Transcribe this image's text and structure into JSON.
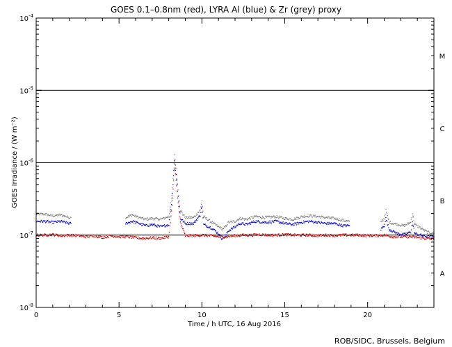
{
  "chart_data": {
    "type": "scatter",
    "title": "GOES 0.1–0.8nm (red), LYRA Al (blue) & Zr (grey) proxy",
    "xlabel": "Time / h UTC, 16 Aug 2016",
    "ylabel": "GOES Irradiance / (W m⁻²)",
    "xlim": [
      0,
      24
    ],
    "ylim": [
      1e-08,
      0.0001
    ],
    "yscale": "log",
    "x_ticks": [
      0,
      5,
      10,
      15,
      20
    ],
    "y_ticks": [
      {
        "value": 1e-08,
        "base": "10",
        "exp": "-8"
      },
      {
        "value": 1e-07,
        "base": "10",
        "exp": "-7"
      },
      {
        "value": 1e-06,
        "base": "10",
        "exp": "-6"
      },
      {
        "value": 1e-05,
        "base": "10",
        "exp": "-5"
      },
      {
        "value": 0.0001,
        "base": "10",
        "exp": "-4"
      }
    ],
    "flare_classes": [
      {
        "label": "A",
        "level": 3e-08
      },
      {
        "label": "B",
        "level": 3e-07
      },
      {
        "label": "C",
        "level": 3e-06
      },
      {
        "label": "M",
        "level": 3e-05
      }
    ],
    "threshold_lines": [
      1e-07,
      1e-06,
      1e-05
    ],
    "series": [
      {
        "color": "#808080",
        "segments": [
          [
            [
              0.0,
              1.95e-07
            ],
            [
              0.5,
              1.95e-07
            ],
            [
              1.0,
              1.85e-07
            ],
            [
              1.5,
              1.9e-07
            ],
            [
              2.0,
              1.75e-07
            ],
            [
              2.1,
              1.75e-07
            ]
          ],
          [
            [
              5.4,
              1.75e-07
            ],
            [
              5.8,
              1.9e-07
            ],
            [
              6.2,
              1.75e-07
            ],
            [
              6.6,
              1.65e-07
            ],
            [
              7.0,
              1.7e-07
            ],
            [
              7.5,
              1.65e-07
            ],
            [
              8.0,
              1.8e-07
            ],
            [
              8.2,
              3.5e-07
            ],
            [
              8.35,
              1.3e-06
            ],
            [
              8.5,
              6e-07
            ],
            [
              8.7,
              2.2e-07
            ],
            [
              9.0,
              1.75e-07
            ],
            [
              9.5,
              1.75e-07
            ],
            [
              9.9,
              2.2e-07
            ],
            [
              10.0,
              3e-07
            ],
            [
              10.1,
              1.8e-07
            ],
            [
              10.6,
              1.5e-07
            ],
            [
              11.0,
              1.3e-07
            ],
            [
              11.3,
              1.2e-07
            ],
            [
              11.6,
              1.5e-07
            ],
            [
              12.0,
              1.55e-07
            ],
            [
              12.3,
              1.7e-07
            ],
            [
              12.7,
              1.65e-07
            ],
            [
              13.2,
              1.8e-07
            ],
            [
              13.8,
              1.75e-07
            ],
            [
              14.5,
              1.8e-07
            ],
            [
              15.0,
              1.7e-07
            ],
            [
              15.5,
              1.65e-07
            ],
            [
              16.0,
              1.8e-07
            ],
            [
              16.5,
              1.85e-07
            ],
            [
              17.0,
              1.8e-07
            ],
            [
              17.5,
              1.75e-07
            ],
            [
              18.0,
              1.7e-07
            ],
            [
              18.5,
              1.6e-07
            ],
            [
              18.9,
              1.55e-07
            ]
          ],
          [
            [
              20.8,
              1.5e-07
            ],
            [
              21.0,
              1.7e-07
            ],
            [
              21.1,
              2.2e-07
            ],
            [
              21.3,
              1.5e-07
            ],
            [
              21.8,
              1.4e-07
            ],
            [
              22.2,
              1.35e-07
            ],
            [
              22.6,
              1.5e-07
            ],
            [
              22.7,
              2e-07
            ],
            [
              22.85,
              1.4e-07
            ],
            [
              23.2,
              1.25e-07
            ],
            [
              23.6,
              1.1e-07
            ],
            [
              24.0,
              1.05e-07
            ]
          ]
        ]
      },
      {
        "color": "#0000cc",
        "segments": [
          [
            [
              0.0,
              1.55e-07
            ],
            [
              0.5,
              1.55e-07
            ],
            [
              1.0,
              1.5e-07
            ],
            [
              1.5,
              1.55e-07
            ],
            [
              2.0,
              1.45e-07
            ],
            [
              2.1,
              1.45e-07
            ]
          ],
          [
            [
              5.4,
              1.45e-07
            ],
            [
              5.8,
              1.55e-07
            ],
            [
              6.2,
              1.45e-07
            ],
            [
              6.6,
              1.35e-07
            ],
            [
              7.0,
              1.4e-07
            ],
            [
              7.5,
              1.3e-07
            ],
            [
              8.0,
              1.4e-07
            ],
            [
              8.2,
              3e-07
            ],
            [
              8.35,
              1.1e-06
            ],
            [
              8.5,
              5e-07
            ],
            [
              8.7,
              1.7e-07
            ],
            [
              9.0,
              1.45e-07
            ],
            [
              9.5,
              1.45e-07
            ],
            [
              9.9,
              1.9e-07
            ],
            [
              10.0,
              2.5e-07
            ],
            [
              10.1,
              1.4e-07
            ],
            [
              10.6,
              1.25e-07
            ],
            [
              11.0,
              1.05e-07
            ],
            [
              11.2,
              9e-08
            ],
            [
              11.4,
              9.5e-08
            ],
            [
              11.6,
              1.15e-07
            ],
            [
              12.0,
              1.3e-07
            ],
            [
              12.3,
              1.45e-07
            ],
            [
              12.7,
              1.4e-07
            ],
            [
              13.2,
              1.55e-07
            ],
            [
              13.8,
              1.5e-07
            ],
            [
              14.5,
              1.55e-07
            ],
            [
              15.0,
              1.45e-07
            ],
            [
              15.5,
              1.4e-07
            ],
            [
              16.0,
              1.5e-07
            ],
            [
              16.5,
              1.55e-07
            ],
            [
              17.0,
              1.5e-07
            ],
            [
              17.5,
              1.45e-07
            ],
            [
              18.0,
              1.45e-07
            ],
            [
              18.5,
              1.35e-07
            ],
            [
              18.9,
              1.35e-07
            ]
          ],
          [
            [
              20.8,
              1.2e-07
            ],
            [
              21.0,
              1.35e-07
            ],
            [
              21.1,
              1.7e-07
            ],
            [
              21.3,
              1.2e-07
            ],
            [
              21.8,
              1.05e-07
            ],
            [
              22.2,
              1.02e-07
            ],
            [
              22.6,
              1.1e-07
            ],
            [
              22.7,
              1.5e-07
            ],
            [
              22.85,
              1.05e-07
            ],
            [
              23.2,
              1e-07
            ],
            [
              23.6,
              9.5e-08
            ],
            [
              24.0,
              9.5e-08
            ]
          ]
        ]
      },
      {
        "color": "#cc0000",
        "segments": [
          [
            [
              0.0,
              1e-07
            ],
            [
              0.5,
              1e-07
            ],
            [
              1.0,
              1.02e-07
            ],
            [
              1.5,
              9.8e-08
            ],
            [
              2.0,
              1e-07
            ],
            [
              2.5,
              9.8e-08
            ],
            [
              3.0,
              9.5e-08
            ],
            [
              3.5,
              9.8e-08
            ],
            [
              4.0,
              9.3e-08
            ],
            [
              4.5,
              9.8e-08
            ],
            [
              5.0,
              9.5e-08
            ],
            [
              5.5,
              9.5e-08
            ],
            [
              6.0,
              9.2e-08
            ],
            [
              6.5,
              9e-08
            ],
            [
              7.0,
              9.2e-08
            ],
            [
              7.5,
              9e-08
            ],
            [
              8.0,
              9.5e-08
            ],
            [
              8.2,
              2.5e-07
            ],
            [
              8.35,
              1e-06
            ],
            [
              8.5,
              4e-07
            ],
            [
              8.7,
              1.5e-07
            ],
            [
              9.0,
              9.8e-08
            ],
            [
              9.5,
              9.8e-08
            ],
            [
              10.0,
              1e-07
            ],
            [
              10.5,
              9.8e-08
            ],
            [
              11.0,
              9.5e-08
            ],
            [
              11.5,
              9.5e-08
            ],
            [
              12.0,
              9.8e-08
            ],
            [
              12.5,
              1e-07
            ],
            [
              13.0,
              1e-07
            ],
            [
              13.5,
              1.02e-07
            ],
            [
              14.0,
              1e-07
            ],
            [
              14.5,
              1e-07
            ],
            [
              15.0,
              1.02e-07
            ],
            [
              15.5,
              1e-07
            ],
            [
              16.0,
              1e-07
            ],
            [
              16.5,
              1e-07
            ],
            [
              17.0,
              9.8e-08
            ],
            [
              17.5,
              1e-07
            ],
            [
              18.0,
              9.8e-08
            ],
            [
              18.5,
              1e-07
            ],
            [
              19.0,
              1e-07
            ],
            [
              19.5,
              1e-07
            ],
            [
              20.0,
              9.8e-08
            ],
            [
              20.5,
              9.8e-08
            ],
            [
              21.0,
              1e-07
            ],
            [
              21.5,
              9.5e-08
            ],
            [
              22.0,
              9.5e-08
            ],
            [
              22.5,
              9.5e-08
            ],
            [
              23.0,
              9.3e-08
            ],
            [
              23.5,
              9e-08
            ],
            [
              24.0,
              8.8e-08
            ]
          ]
        ]
      }
    ]
  },
  "footer": {
    "credit": "ROB/SIDC, Brussels, Belgium"
  }
}
